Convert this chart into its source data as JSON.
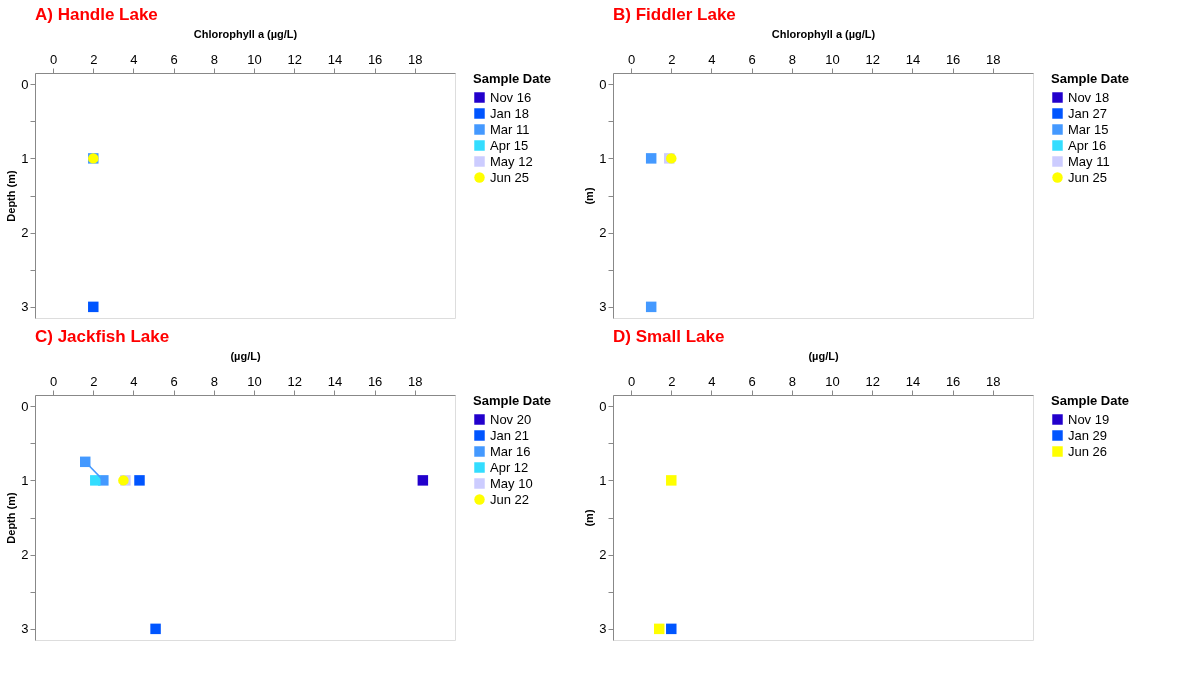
{
  "chart_data": [
    {
      "type": "scatter",
      "title": "A) Handle Lake",
      "xlabel": "Chlorophyll a (µg/L)",
      "ylabel": "Depth (m)",
      "legend_title": "Sample Date",
      "legend": "right",
      "grid": false,
      "xlim": [
        -0.9,
        20
      ],
      "xticks": [
        0,
        2,
        4,
        6,
        8,
        10,
        12,
        14,
        16,
        18
      ],
      "ylim": [
        3.15,
        -0.15
      ],
      "yticks": [
        0,
        {
          "value": 0.5,
          "label": null
        },
        1,
        {
          "value": 1.5,
          "label": null
        },
        2,
        {
          "value": 2.5,
          "label": null
        },
        3
      ],
      "series": [
        {
          "name": "Nov 16",
          "color": "#2200cc",
          "marker": "square"
        },
        {
          "name": "Jan 18",
          "color": "#0055ff",
          "marker": "square",
          "x": [
            2
          ],
          "values": [
            3
          ]
        },
        {
          "name": "Mar 11",
          "color": "#4499ff",
          "marker": "square",
          "x": [
            2
          ],
          "values": [
            1
          ]
        },
        {
          "name": "Apr 15",
          "color": "#33ddff",
          "marker": "square"
        },
        {
          "name": "May 12",
          "color": "#ccccff",
          "marker": "square"
        },
        {
          "name": "Jun 25",
          "color": "#ffff00",
          "marker": "circle",
          "x": [
            2
          ],
          "values": [
            1
          ]
        }
      ]
    },
    {
      "type": "scatter",
      "title": "B) Fiddler Lake",
      "xlabel": "Chlorophyll a (µg/L)",
      "ylabel": "(m)",
      "legend_title": "Sample Date",
      "legend": "right",
      "grid": false,
      "xlim": [
        -0.9,
        20
      ],
      "xticks": [
        0,
        2,
        4,
        6,
        8,
        10,
        12,
        14,
        16,
        18
      ],
      "ylim": [
        3.15,
        -0.15
      ],
      "yticks": [
        0,
        {
          "value": 0.5,
          "label": null
        },
        1,
        {
          "value": 1.5,
          "label": null
        },
        2,
        {
          "value": 2.5,
          "label": null
        },
        3
      ],
      "series": [
        {
          "name": "Nov 18",
          "color": "#2200cc",
          "marker": "square"
        },
        {
          "name": "Jan 27",
          "color": "#0055ff",
          "marker": "square"
        },
        {
          "name": "Mar 15",
          "color": "#4499ff",
          "marker": "square",
          "x": [
            1,
            1
          ],
          "values": [
            1,
            3
          ]
        },
        {
          "name": "Apr 16",
          "color": "#33ddff",
          "marker": "square"
        },
        {
          "name": "May 11",
          "color": "#ccccff",
          "marker": "square",
          "x": [
            1.9
          ],
          "values": [
            1
          ]
        },
        {
          "name": "Jun 25",
          "color": "#ffff00",
          "marker": "circle",
          "x": [
            2
          ],
          "values": [
            1
          ]
        }
      ]
    },
    {
      "type": "scatter",
      "title": "C) Jackfish Lake",
      "xlabel": "(µg/L)",
      "ylabel": "Depth (m)",
      "legend_title": "Sample Date",
      "legend": "right",
      "grid": false,
      "xlim": [
        -0.9,
        20
      ],
      "xticks": [
        0,
        2,
        4,
        6,
        8,
        10,
        12,
        14,
        16,
        18
      ],
      "ylim": [
        3.15,
        -0.15
      ],
      "yticks": [
        0,
        {
          "value": 0.5,
          "label": null
        },
        1,
        {
          "value": 1.5,
          "label": null
        },
        2,
        {
          "value": 2.5,
          "label": null
        },
        3
      ],
      "series": [
        {
          "name": "Nov 20",
          "color": "#2200cc",
          "marker": "square",
          "x": [
            18.4
          ],
          "values": [
            1
          ]
        },
        {
          "name": "Jan 21",
          "color": "#0055ff",
          "marker": "square",
          "x": [
            4.3,
            5.1
          ],
          "values": [
            1,
            3
          ]
        },
        {
          "name": "Mar 16",
          "color": "#4499ff",
          "marker": "square",
          "type": "line",
          "x": [
            1.6,
            2.5
          ],
          "values": [
            0.75,
            1
          ]
        },
        {
          "name": "Apr 12",
          "color": "#33ddff",
          "marker": "square",
          "x": [
            2.1
          ],
          "values": [
            1
          ]
        },
        {
          "name": "May 10",
          "color": "#ccccff",
          "marker": "square",
          "x": [
            3.6
          ],
          "values": [
            1
          ]
        },
        {
          "name": "Jun 22",
          "color": "#ffff00",
          "marker": "circle",
          "x": [
            3.5
          ],
          "values": [
            1
          ]
        }
      ]
    },
    {
      "type": "scatter",
      "title": "D) Small Lake",
      "xlabel": "(µg/L)",
      "ylabel": "(m)",
      "legend_title": "Sample Date",
      "legend": "right",
      "grid": false,
      "xlim": [
        -0.9,
        20
      ],
      "xticks": [
        0,
        2,
        4,
        6,
        8,
        10,
        12,
        14,
        16,
        18
      ],
      "ylim": [
        3.15,
        -0.15
      ],
      "yticks": [
        0,
        {
          "value": 0.5,
          "label": null
        },
        1,
        {
          "value": 1.5,
          "label": null
        },
        2,
        {
          "value": 2.5,
          "label": null
        },
        3
      ],
      "series": [
        {
          "name": "Nov 19",
          "color": "#2200cc",
          "marker": "square"
        },
        {
          "name": "Jan 29",
          "color": "#0055ff",
          "marker": "square",
          "x": [
            2
          ],
          "values": [
            3
          ]
        },
        {
          "name": "Jun 26",
          "color": "#ffff00",
          "marker": "square",
          "x": [
            2,
            1.4
          ],
          "values": [
            1,
            3
          ]
        }
      ]
    }
  ]
}
